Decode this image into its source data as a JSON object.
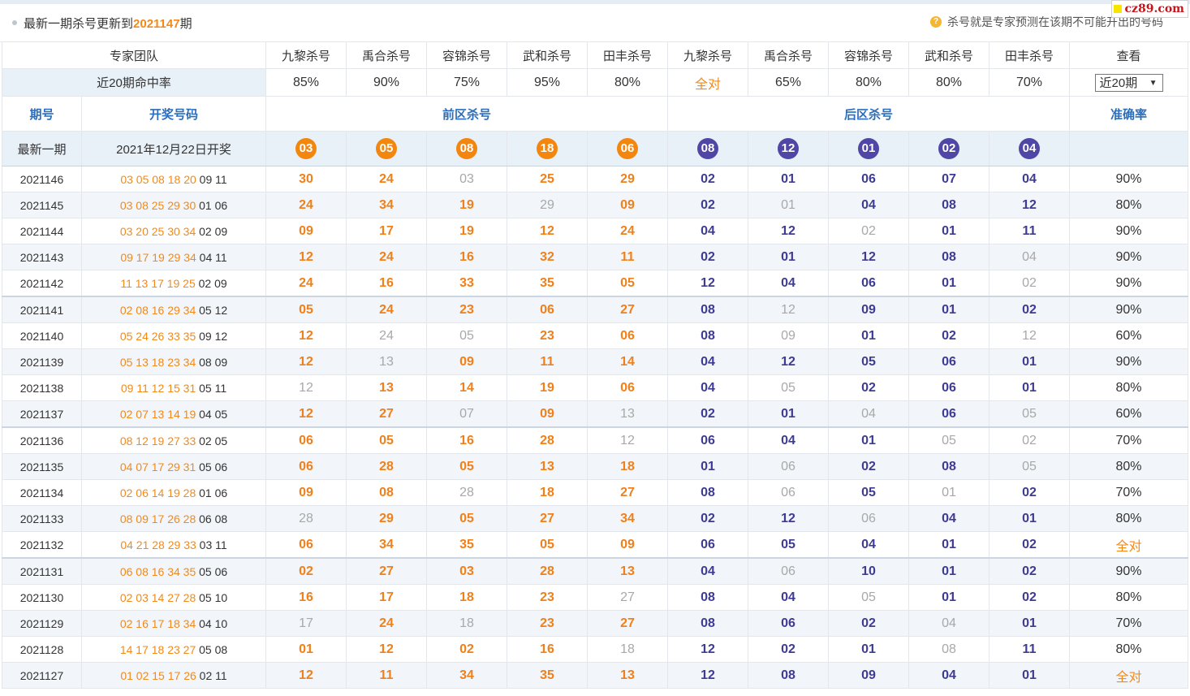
{
  "notice": {
    "prefix": "最新一期杀号更新到",
    "issue": "2021147",
    "suffix": "期",
    "hint": "杀号就是专家预测在该期不可能开出的号码",
    "hint_icon": "question-icon"
  },
  "logo": {
    "text": "cz89.com"
  },
  "header": {
    "team_label": "专家团队",
    "experts": [
      "九黎杀号",
      "禹合杀号",
      "容锦杀号",
      "武和杀号",
      "田丰杀号",
      "九黎杀号",
      "禹合杀号",
      "容锦杀号",
      "武和杀号",
      "田丰杀号"
    ],
    "view_label": "查看",
    "rate_label": "近20期命中率",
    "rates": [
      "85%",
      "90%",
      "75%",
      "95%",
      "80%",
      "全对",
      "65%",
      "80%",
      "80%",
      "70%"
    ],
    "period_select": "近20期"
  },
  "columns": {
    "issue": "期号",
    "draw": "开奖号码",
    "front": "前区杀号",
    "back": "后区杀号",
    "accuracy": "准确率"
  },
  "latest": {
    "label": "最新一期",
    "date": "2021年12月22日开奖",
    "front": [
      "03",
      "05",
      "08",
      "18",
      "06"
    ],
    "back": [
      "08",
      "12",
      "01",
      "02",
      "04"
    ]
  },
  "rows": [
    {
      "issue": "2021146",
      "front": "03 05 08 18 20",
      "back": "09 11",
      "kills": [
        "30",
        "24",
        "03",
        "25",
        "29",
        "02",
        "01",
        "06",
        "07",
        "04"
      ],
      "miss": [
        2
      ],
      "acc": "90%"
    },
    {
      "issue": "2021145",
      "front": "03 08 25 29 30",
      "back": "01 06",
      "kills": [
        "24",
        "34",
        "19",
        "29",
        "09",
        "02",
        "01",
        "04",
        "08",
        "12"
      ],
      "miss": [
        3,
        6
      ],
      "acc": "80%"
    },
    {
      "issue": "2021144",
      "front": "03 20 25 30 34",
      "back": "02 09",
      "kills": [
        "09",
        "17",
        "19",
        "12",
        "24",
        "04",
        "12",
        "02",
        "01",
        "11"
      ],
      "miss": [
        7
      ],
      "acc": "90%"
    },
    {
      "issue": "2021143",
      "front": "09 17 19 29 34",
      "back": "04 11",
      "kills": [
        "12",
        "24",
        "16",
        "32",
        "11",
        "02",
        "01",
        "12",
        "08",
        "04"
      ],
      "miss": [
        9
      ],
      "acc": "90%"
    },
    {
      "issue": "2021142",
      "front": "11 13 17 19 25",
      "back": "02 09",
      "kills": [
        "24",
        "16",
        "33",
        "35",
        "05",
        "12",
        "04",
        "06",
        "01",
        "02"
      ],
      "miss": [
        9
      ],
      "acc": "90%"
    },
    {
      "issue": "2021141",
      "front": "02 08 16 29 34",
      "back": "05 12",
      "kills": [
        "05",
        "24",
        "23",
        "06",
        "27",
        "08",
        "12",
        "09",
        "01",
        "02"
      ],
      "miss": [
        6
      ],
      "acc": "90%"
    },
    {
      "issue": "2021140",
      "front": "05 24 26 33 35",
      "back": "09 12",
      "kills": [
        "12",
        "24",
        "05",
        "23",
        "06",
        "08",
        "09",
        "01",
        "02",
        "12"
      ],
      "miss": [
        1,
        2,
        6,
        9
      ],
      "acc": "60%"
    },
    {
      "issue": "2021139",
      "front": "05 13 18 23 34",
      "back": "08 09",
      "kills": [
        "12",
        "13",
        "09",
        "11",
        "14",
        "04",
        "12",
        "05",
        "06",
        "01"
      ],
      "miss": [
        1
      ],
      "acc": "90%"
    },
    {
      "issue": "2021138",
      "front": "09 11 12 15 31",
      "back": "05 11",
      "kills": [
        "12",
        "13",
        "14",
        "19",
        "06",
        "04",
        "05",
        "02",
        "06",
        "01"
      ],
      "miss": [
        0,
        6
      ],
      "acc": "80%"
    },
    {
      "issue": "2021137",
      "front": "02 07 13 14 19",
      "back": "04 05",
      "kills": [
        "12",
        "27",
        "07",
        "09",
        "13",
        "02",
        "01",
        "04",
        "06",
        "05"
      ],
      "miss": [
        2,
        4,
        7,
        9
      ],
      "acc": "60%"
    },
    {
      "issue": "2021136",
      "front": "08 12 19 27 33",
      "back": "02 05",
      "kills": [
        "06",
        "05",
        "16",
        "28",
        "12",
        "06",
        "04",
        "01",
        "05",
        "02"
      ],
      "miss": [
        4,
        8,
        9
      ],
      "acc": "70%"
    },
    {
      "issue": "2021135",
      "front": "04 07 17 29 31",
      "back": "05 06",
      "kills": [
        "06",
        "28",
        "05",
        "13",
        "18",
        "01",
        "06",
        "02",
        "08",
        "05"
      ],
      "miss": [
        6,
        9
      ],
      "acc": "80%"
    },
    {
      "issue": "2021134",
      "front": "02 06 14 19 28",
      "back": "01 06",
      "kills": [
        "09",
        "08",
        "28",
        "18",
        "27",
        "08",
        "06",
        "05",
        "01",
        "02"
      ],
      "miss": [
        2,
        6,
        8
      ],
      "acc": "70%"
    },
    {
      "issue": "2021133",
      "front": "08 09 17 26 28",
      "back": "06 08",
      "kills": [
        "28",
        "29",
        "05",
        "27",
        "34",
        "02",
        "12",
        "06",
        "04",
        "01"
      ],
      "miss": [
        0,
        7
      ],
      "acc": "80%"
    },
    {
      "issue": "2021132",
      "front": "04 21 28 29 33",
      "back": "03 11",
      "kills": [
        "06",
        "34",
        "35",
        "05",
        "09",
        "06",
        "05",
        "04",
        "01",
        "02"
      ],
      "miss": [],
      "acc": "全对"
    },
    {
      "issue": "2021131",
      "front": "06 08 16 34 35",
      "back": "05 06",
      "kills": [
        "02",
        "27",
        "03",
        "28",
        "13",
        "04",
        "06",
        "10",
        "01",
        "02"
      ],
      "miss": [
        6
      ],
      "acc": "90%"
    },
    {
      "issue": "2021130",
      "front": "02 03 14 27 28",
      "back": "05 10",
      "kills": [
        "16",
        "17",
        "18",
        "23",
        "27",
        "08",
        "04",
        "05",
        "01",
        "02"
      ],
      "miss": [
        4,
        7
      ],
      "acc": "80%"
    },
    {
      "issue": "2021129",
      "front": "02 16 17 18 34",
      "back": "04 10",
      "kills": [
        "17",
        "24",
        "18",
        "23",
        "27",
        "08",
        "06",
        "02",
        "04",
        "01"
      ],
      "miss": [
        0,
        2,
        8
      ],
      "acc": "70%"
    },
    {
      "issue": "2021128",
      "front": "14 17 18 23 27",
      "back": "05 08",
      "kills": [
        "01",
        "12",
        "02",
        "16",
        "18",
        "12",
        "02",
        "01",
        "08",
        "11"
      ],
      "miss": [
        4,
        8
      ],
      "acc": "80%"
    },
    {
      "issue": "2021127",
      "front": "01 02 15 17 26",
      "back": "02 11",
      "kills": [
        "12",
        "11",
        "34",
        "35",
        "13",
        "12",
        "08",
        "09",
        "04",
        "01"
      ],
      "miss": [],
      "acc": "全对"
    }
  ]
}
